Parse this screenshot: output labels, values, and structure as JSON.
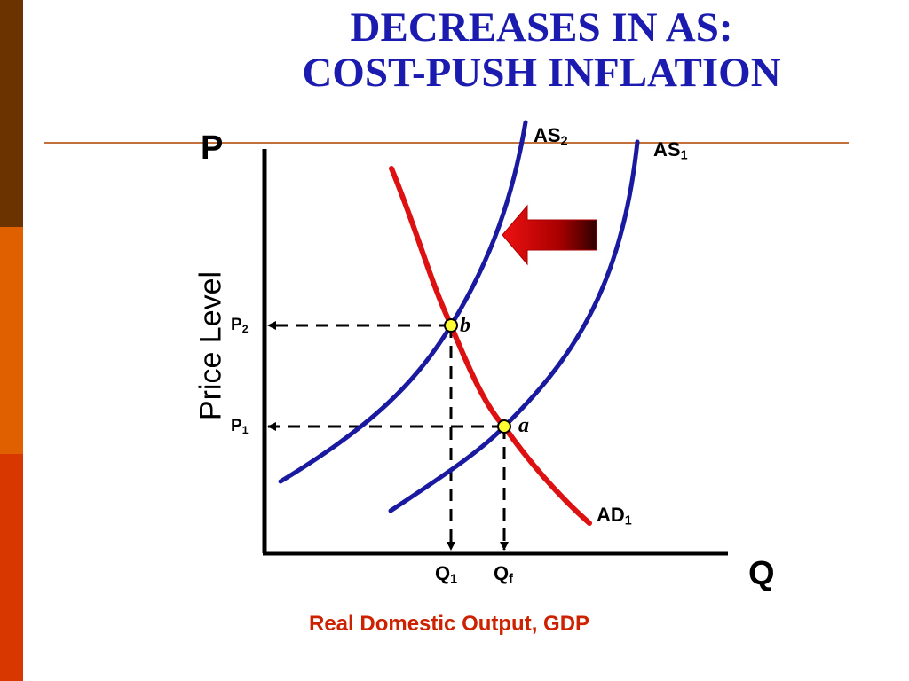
{
  "title": {
    "line1": "DECREASES IN AS:",
    "line2": "COST-PUSH INFLATION"
  },
  "axes": {
    "y_letter": "P",
    "x_letter": "Q",
    "y_label": "Price Level",
    "x_label": "Real Domestic Output, GDP"
  },
  "curves": {
    "as2": {
      "main": "AS",
      "sub": "2"
    },
    "as1": {
      "main": "AS",
      "sub": "1"
    },
    "ad1": {
      "main": "AD",
      "sub": "1"
    }
  },
  "levels": {
    "p2": {
      "main": "P",
      "sub": "2"
    },
    "p1": {
      "main": "P",
      "sub": "1"
    },
    "q1": {
      "main": "Q",
      "sub": "1"
    },
    "qf": {
      "main": "Q",
      "sub": "f"
    }
  },
  "points": {
    "b": "b",
    "a": "a"
  },
  "shift_arrow": {
    "direction": "left"
  },
  "colors": {
    "title": "#1b1bb0",
    "supply_curves": "#1a1aa0",
    "demand_curve": "#dd1111",
    "x_label": "#cc2200",
    "equilibrium_point": "#ffff33",
    "rule": "#c0703a",
    "sidebar": [
      "#6b3300",
      "#e06000",
      "#d83800"
    ]
  }
}
